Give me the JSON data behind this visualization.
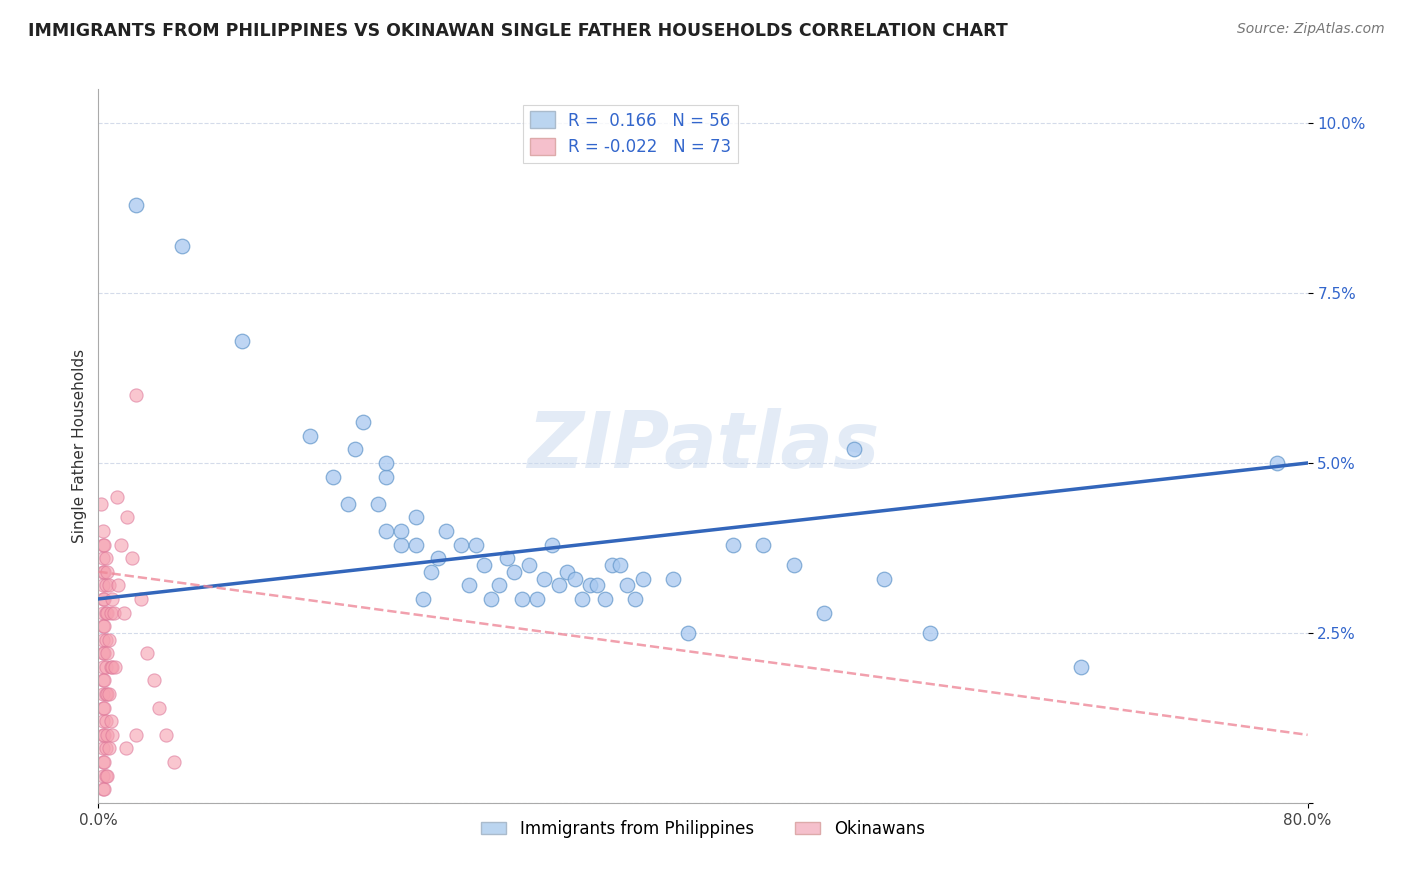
{
  "title": "IMMIGRANTS FROM PHILIPPINES VS OKINAWAN SINGLE FATHER HOUSEHOLDS CORRELATION CHART",
  "source": "Source: ZipAtlas.com",
  "ylabel": "Single Father Households",
  "xlim": [
    0.0,
    0.8
  ],
  "ylim": [
    0.0,
    0.105
  ],
  "legend_label1": "Immigrants from Philippines",
  "legend_label2": "Okinawans",
  "watermark": "ZIPatlas",
  "background_color": "#ffffff",
  "grid_color": "#d0d8e8",
  "blue_color": "#a8c8f0",
  "blue_edge_color": "#6699cc",
  "pink_color": "#f5a0b0",
  "pink_edge_color": "#dd7799",
  "blue_line_color": "#3366bb",
  "pink_line_color": "#ee8899",
  "blue_scatter": [
    [
      0.025,
      0.088
    ],
    [
      0.055,
      0.082
    ],
    [
      0.095,
      0.068
    ],
    [
      0.14,
      0.054
    ],
    [
      0.155,
      0.048
    ],
    [
      0.165,
      0.044
    ],
    [
      0.17,
      0.052
    ],
    [
      0.175,
      0.056
    ],
    [
      0.185,
      0.044
    ],
    [
      0.19,
      0.04
    ],
    [
      0.19,
      0.048
    ],
    [
      0.19,
      0.05
    ],
    [
      0.2,
      0.038
    ],
    [
      0.2,
      0.04
    ],
    [
      0.21,
      0.038
    ],
    [
      0.21,
      0.042
    ],
    [
      0.215,
      0.03
    ],
    [
      0.22,
      0.034
    ],
    [
      0.225,
      0.036
    ],
    [
      0.23,
      0.04
    ],
    [
      0.24,
      0.038
    ],
    [
      0.245,
      0.032
    ],
    [
      0.25,
      0.038
    ],
    [
      0.255,
      0.035
    ],
    [
      0.26,
      0.03
    ],
    [
      0.265,
      0.032
    ],
    [
      0.27,
      0.036
    ],
    [
      0.275,
      0.034
    ],
    [
      0.28,
      0.03
    ],
    [
      0.285,
      0.035
    ],
    [
      0.29,
      0.03
    ],
    [
      0.295,
      0.033
    ],
    [
      0.3,
      0.038
    ],
    [
      0.305,
      0.032
    ],
    [
      0.31,
      0.034
    ],
    [
      0.315,
      0.033
    ],
    [
      0.32,
      0.03
    ],
    [
      0.325,
      0.032
    ],
    [
      0.33,
      0.032
    ],
    [
      0.335,
      0.03
    ],
    [
      0.34,
      0.035
    ],
    [
      0.345,
      0.035
    ],
    [
      0.35,
      0.032
    ],
    [
      0.355,
      0.03
    ],
    [
      0.36,
      0.033
    ],
    [
      0.38,
      0.033
    ],
    [
      0.39,
      0.025
    ],
    [
      0.42,
      0.038
    ],
    [
      0.44,
      0.038
    ],
    [
      0.46,
      0.035
    ],
    [
      0.48,
      0.028
    ],
    [
      0.5,
      0.052
    ],
    [
      0.52,
      0.033
    ],
    [
      0.55,
      0.025
    ],
    [
      0.65,
      0.02
    ],
    [
      0.78,
      0.05
    ]
  ],
  "pink_scatter": [
    [
      0.002,
      0.044
    ],
    [
      0.003,
      0.04
    ],
    [
      0.003,
      0.038
    ],
    [
      0.003,
      0.036
    ],
    [
      0.003,
      0.034
    ],
    [
      0.003,
      0.032
    ],
    [
      0.003,
      0.03
    ],
    [
      0.003,
      0.028
    ],
    [
      0.003,
      0.026
    ],
    [
      0.003,
      0.024
    ],
    [
      0.003,
      0.022
    ],
    [
      0.003,
      0.02
    ],
    [
      0.003,
      0.018
    ],
    [
      0.003,
      0.016
    ],
    [
      0.003,
      0.014
    ],
    [
      0.003,
      0.012
    ],
    [
      0.003,
      0.01
    ],
    [
      0.003,
      0.008
    ],
    [
      0.003,
      0.006
    ],
    [
      0.003,
      0.004
    ],
    [
      0.003,
      0.002
    ],
    [
      0.004,
      0.038
    ],
    [
      0.004,
      0.034
    ],
    [
      0.004,
      0.03
    ],
    [
      0.004,
      0.026
    ],
    [
      0.004,
      0.022
    ],
    [
      0.004,
      0.018
    ],
    [
      0.004,
      0.014
    ],
    [
      0.004,
      0.01
    ],
    [
      0.004,
      0.006
    ],
    [
      0.004,
      0.002
    ],
    [
      0.005,
      0.036
    ],
    [
      0.005,
      0.032
    ],
    [
      0.005,
      0.028
    ],
    [
      0.005,
      0.024
    ],
    [
      0.005,
      0.02
    ],
    [
      0.005,
      0.016
    ],
    [
      0.005,
      0.012
    ],
    [
      0.005,
      0.008
    ],
    [
      0.005,
      0.004
    ],
    [
      0.006,
      0.034
    ],
    [
      0.006,
      0.028
    ],
    [
      0.006,
      0.022
    ],
    [
      0.006,
      0.016
    ],
    [
      0.006,
      0.01
    ],
    [
      0.006,
      0.004
    ],
    [
      0.007,
      0.032
    ],
    [
      0.007,
      0.024
    ],
    [
      0.007,
      0.016
    ],
    [
      0.007,
      0.008
    ],
    [
      0.008,
      0.028
    ],
    [
      0.008,
      0.02
    ],
    [
      0.008,
      0.012
    ],
    [
      0.009,
      0.03
    ],
    [
      0.009,
      0.02
    ],
    [
      0.009,
      0.01
    ],
    [
      0.01,
      0.028
    ],
    [
      0.011,
      0.02
    ],
    [
      0.012,
      0.045
    ],
    [
      0.013,
      0.032
    ],
    [
      0.015,
      0.038
    ],
    [
      0.017,
      0.028
    ],
    [
      0.019,
      0.042
    ],
    [
      0.022,
      0.036
    ],
    [
      0.025,
      0.06
    ],
    [
      0.028,
      0.03
    ],
    [
      0.032,
      0.022
    ],
    [
      0.037,
      0.018
    ],
    [
      0.018,
      0.008
    ],
    [
      0.025,
      0.01
    ],
    [
      0.04,
      0.014
    ],
    [
      0.045,
      0.01
    ],
    [
      0.05,
      0.006
    ]
  ]
}
